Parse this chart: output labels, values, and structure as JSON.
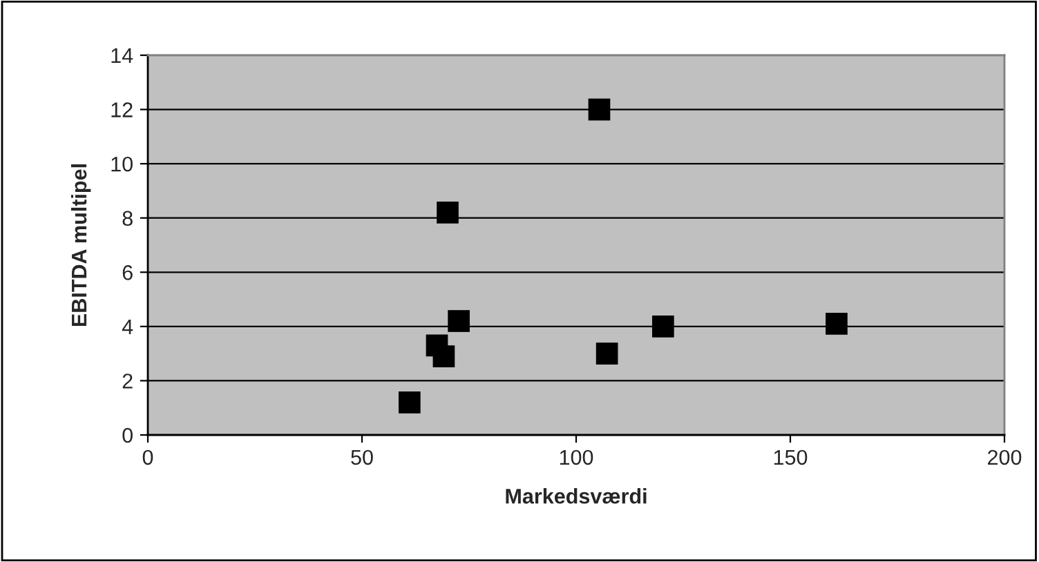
{
  "chart_data": {
    "type": "scatter",
    "xlabel": "Markedsværdi",
    "ylabel": "EBITDA multipel",
    "x": [
      105.4,
      70.0,
      72.6,
      67.5,
      69.1,
      61.1,
      107.2,
      120.3,
      160.8
    ],
    "series": [
      {
        "color": "#000000",
        "values": [
          12.0,
          8.2,
          4.2,
          3.3,
          2.9,
          1.2,
          3.0,
          4.0,
          4.1
        ]
      }
    ],
    "xlim": [
      0,
      200
    ],
    "xticks": [
      0,
      50,
      100,
      150,
      200
    ],
    "ylim": [
      0,
      14
    ],
    "yticks": [
      0,
      2,
      4,
      6,
      8,
      10,
      12,
      14
    ],
    "grid": "y",
    "legend": false,
    "marker": "square"
  }
}
